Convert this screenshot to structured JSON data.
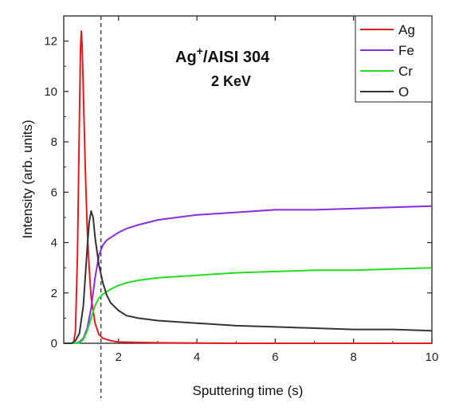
{
  "chart_data": {
    "type": "line",
    "title": "",
    "xlabel": "Sputtering time (s)",
    "ylabel": "Intensity (arb. units)",
    "xlim": [
      0.6,
      10
    ],
    "ylim": [
      0,
      13
    ],
    "xticks": [
      2,
      4,
      6,
      8,
      10
    ],
    "yticks": [
      0,
      2,
      4,
      6,
      8,
      10,
      12
    ],
    "grid": false,
    "legend_position": "top-right",
    "annotation": {
      "line1_base": "Ag",
      "line1_sup": "+",
      "line1_rest": "/AISI 304",
      "line2": "2 KeV"
    },
    "vertical_marker_x": 1.55,
    "series": [
      {
        "name": "Ag",
        "color": "#e31a1c",
        "x": [
          0.6,
          0.85,
          0.9,
          0.95,
          1.0,
          1.03,
          1.05,
          1.07,
          1.1,
          1.15,
          1.2,
          1.25,
          1.3,
          1.4,
          1.5,
          1.6,
          1.8,
          2.0,
          3.0,
          5.0,
          10.0
        ],
        "y": [
          0.0,
          0.0,
          0.5,
          3.5,
          9.0,
          11.8,
          12.4,
          11.8,
          10.0,
          7.0,
          4.5,
          3.0,
          1.8,
          0.8,
          0.35,
          0.2,
          0.1,
          0.05,
          0.02,
          0.0,
          0.0
        ]
      },
      {
        "name": "Fe",
        "color": "#8a2be2",
        "x": [
          0.6,
          0.9,
          1.0,
          1.1,
          1.2,
          1.3,
          1.4,
          1.5,
          1.6,
          1.7,
          1.8,
          2.0,
          2.2,
          2.5,
          3.0,
          3.5,
          4.0,
          5.0,
          6.0,
          7.0,
          8.0,
          9.0,
          10.0
        ],
        "y": [
          0.0,
          0.0,
          0.05,
          0.2,
          0.6,
          1.4,
          2.6,
          3.5,
          3.9,
          4.1,
          4.2,
          4.4,
          4.55,
          4.7,
          4.9,
          5.0,
          5.1,
          5.2,
          5.3,
          5.3,
          5.35,
          5.4,
          5.45
        ]
      },
      {
        "name": "Cr",
        "color": "#22dd22",
        "x": [
          0.6,
          0.9,
          1.0,
          1.1,
          1.2,
          1.3,
          1.4,
          1.5,
          1.6,
          1.7,
          1.8,
          2.0,
          2.2,
          2.5,
          3.0,
          3.5,
          4.0,
          5.0,
          6.0,
          7.0,
          8.0,
          9.0,
          10.0
        ],
        "y": [
          0.0,
          0.0,
          0.02,
          0.15,
          0.5,
          1.0,
          1.5,
          1.8,
          1.95,
          2.05,
          2.15,
          2.3,
          2.4,
          2.5,
          2.6,
          2.65,
          2.7,
          2.8,
          2.85,
          2.9,
          2.9,
          2.95,
          3.0
        ]
      },
      {
        "name": "O",
        "color": "#333333",
        "x": [
          0.6,
          0.8,
          0.9,
          1.0,
          1.1,
          1.2,
          1.25,
          1.3,
          1.35,
          1.4,
          1.5,
          1.6,
          1.7,
          1.8,
          2.0,
          2.2,
          2.5,
          3.0,
          3.5,
          4.0,
          5.0,
          6.0,
          7.0,
          8.0,
          9.0,
          10.0
        ],
        "y": [
          0.0,
          0.0,
          0.1,
          0.4,
          1.5,
          3.8,
          4.8,
          5.25,
          5.0,
          4.2,
          3.1,
          2.4,
          1.9,
          1.6,
          1.3,
          1.1,
          1.0,
          0.9,
          0.85,
          0.8,
          0.7,
          0.65,
          0.6,
          0.55,
          0.55,
          0.5
        ]
      }
    ]
  }
}
